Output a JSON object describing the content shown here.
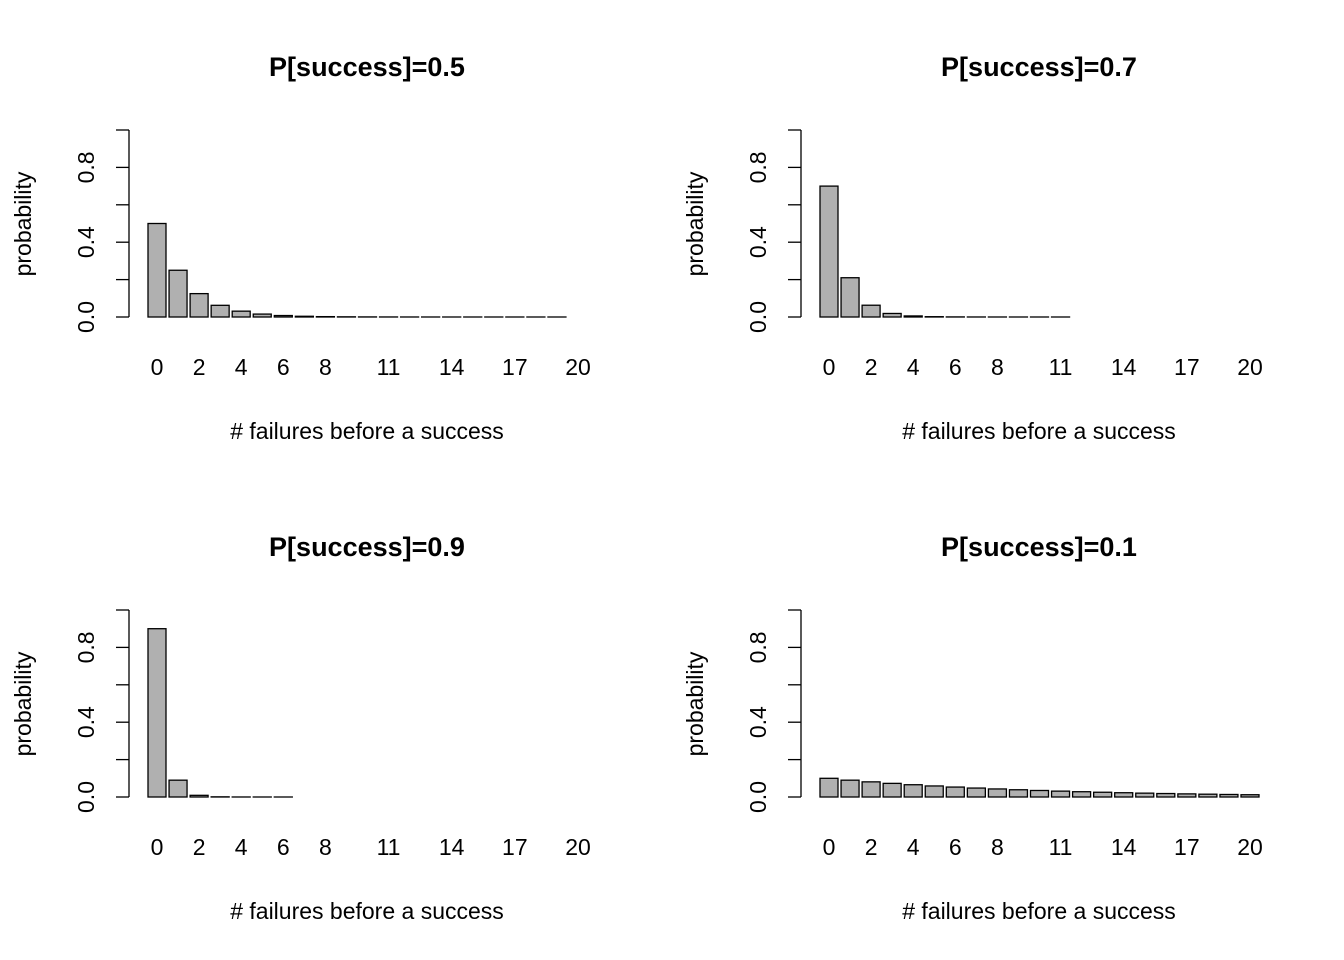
{
  "chart_data": [
    {
      "type": "bar",
      "title": "P[success]=0.5",
      "xlabel": "# failures before a success",
      "ylabel": "probability",
      "ylim": [
        0,
        1
      ],
      "yticks": [
        0,
        0.2,
        0.4,
        0.6,
        0.8,
        1.0
      ],
      "ytick_labels": [
        "0.0",
        "0.4",
        "0.8"
      ],
      "categories": [
        0,
        1,
        2,
        3,
        4,
        5,
        6,
        7,
        8,
        9,
        10,
        11,
        12,
        13,
        14,
        15,
        16,
        17,
        18,
        19,
        20
      ],
      "xtick_labels": [
        "0",
        "2",
        "4",
        "6",
        "8",
        "11",
        "14",
        "17",
        "20"
      ],
      "values": [
        0.5,
        0.25,
        0.125,
        0.0625,
        0.03125,
        0.015625,
        0.007813,
        0.003906,
        0.001953,
        0.000977,
        0.000488,
        0.000244,
        0.000122,
        6.1e-05,
        3.1e-05,
        1.5e-05,
        8e-06,
        4e-06,
        2e-06,
        1e-06,
        0.0
      ]
    },
    {
      "type": "bar",
      "title": "P[success]=0.7",
      "xlabel": "# failures before a success",
      "ylabel": "probability",
      "ylim": [
        0,
        1
      ],
      "yticks": [
        0,
        0.2,
        0.4,
        0.6,
        0.8,
        1.0
      ],
      "ytick_labels": [
        "0.0",
        "0.4",
        "0.8"
      ],
      "categories": [
        0,
        1,
        2,
        3,
        4,
        5,
        6,
        7,
        8,
        9,
        10,
        11,
        12,
        13,
        14,
        15,
        16,
        17,
        18,
        19,
        20
      ],
      "xtick_labels": [
        "0",
        "2",
        "4",
        "6",
        "8",
        "11",
        "14",
        "17",
        "20"
      ],
      "values": [
        0.7,
        0.21,
        0.063,
        0.0189,
        0.00567,
        0.001701,
        0.00051,
        0.000153,
        4.6e-05,
        1.4e-05,
        4e-06,
        1e-06,
        0,
        0,
        0,
        0,
        0,
        0,
        0,
        0,
        0
      ]
    },
    {
      "type": "bar",
      "title": "P[success]=0.9",
      "xlabel": "# failures before a success",
      "ylabel": "probability",
      "ylim": [
        0,
        1
      ],
      "yticks": [
        0,
        0.2,
        0.4,
        0.6,
        0.8,
        1.0
      ],
      "ytick_labels": [
        "0.0",
        "0.4",
        "0.8"
      ],
      "categories": [
        0,
        1,
        2,
        3,
        4,
        5,
        6,
        7,
        8,
        9,
        10,
        11,
        12,
        13,
        14,
        15,
        16,
        17,
        18,
        19,
        20
      ],
      "xtick_labels": [
        "0",
        "2",
        "4",
        "6",
        "8",
        "11",
        "14",
        "17",
        "20"
      ],
      "values": [
        0.9,
        0.09,
        0.009,
        0.0009,
        9e-05,
        9e-06,
        1e-06,
        0,
        0,
        0,
        0,
        0,
        0,
        0,
        0,
        0,
        0,
        0,
        0,
        0,
        0
      ]
    },
    {
      "type": "bar",
      "title": "P[success]=0.1",
      "xlabel": "# failures before a success",
      "ylabel": "probability",
      "ylim": [
        0,
        1
      ],
      "yticks": [
        0,
        0.2,
        0.4,
        0.6,
        0.8,
        1.0
      ],
      "ytick_labels": [
        "0.0",
        "0.4",
        "0.8"
      ],
      "categories": [
        0,
        1,
        2,
        3,
        4,
        5,
        6,
        7,
        8,
        9,
        10,
        11,
        12,
        13,
        14,
        15,
        16,
        17,
        18,
        19,
        20
      ],
      "xtick_labels": [
        "0",
        "2",
        "4",
        "6",
        "8",
        "11",
        "14",
        "17",
        "20"
      ],
      "values": [
        0.1,
        0.09,
        0.081,
        0.0729,
        0.06561,
        0.059049,
        0.053144,
        0.04783,
        0.043047,
        0.038742,
        0.034868,
        0.031381,
        0.028243,
        0.025419,
        0.022877,
        0.020589,
        0.01853,
        0.016677,
        0.015009,
        0.013509,
        0.012158
      ]
    }
  ],
  "colors": {
    "bar_fill": "#b0b0b0",
    "bar_stroke": "#000000"
  }
}
